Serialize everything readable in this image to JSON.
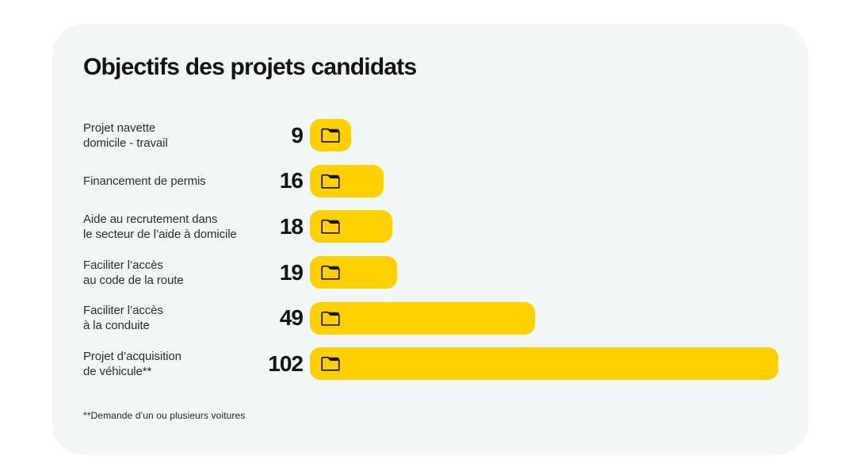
{
  "card": {
    "title": "Objectifs des projets candidats",
    "footnote": "**Demande d’un ou plusieurs voitures"
  },
  "colors": {
    "bar_yellow": "#FFD000",
    "card_background": "#F1F7F7",
    "text_dark": "#141414"
  },
  "chart_data": {
    "type": "bar",
    "orientation": "horizontal",
    "title": "Objectifs des projets candidats",
    "categories": [
      "Projet navette domicile - travail",
      "Financement de permis",
      "Aide au recrutement dans le secteur de l’aide à domicile",
      "Faciliter l’accès au code de la route",
      "Faciliter l’accès à la conduite",
      "Projet d’acquisition de véhicule**"
    ],
    "values": [
      9,
      16,
      18,
      19,
      49,
      102
    ],
    "value_labels": [
      "9",
      "16",
      "18",
      "19",
      "49",
      "102"
    ],
    "xlim": [
      0,
      102
    ],
    "bar_color": "#FFD000",
    "bar_icon": "folder-icon",
    "legend": "none",
    "grid": false,
    "footnote": "**Demande d’un ou plusieurs voitures"
  },
  "rows": [
    {
      "label": "Projet navette\ndomicile - travail",
      "value": "9",
      "raw": 9
    },
    {
      "label": "Financement de permis",
      "value": "16",
      "raw": 16
    },
    {
      "label": "Aide au recrutement dans\nle secteur de l’aide à domicile",
      "value": "18",
      "raw": 18
    },
    {
      "label": "Faciliter l’accès\nau code de la route",
      "value": "19",
      "raw": 19
    },
    {
      "label": "Faciliter l’accès\nà la conduite",
      "value": "49",
      "raw": 49
    },
    {
      "label": "Projet d’acquisition\nde véhicule**",
      "value": "102",
      "raw": 102
    }
  ]
}
